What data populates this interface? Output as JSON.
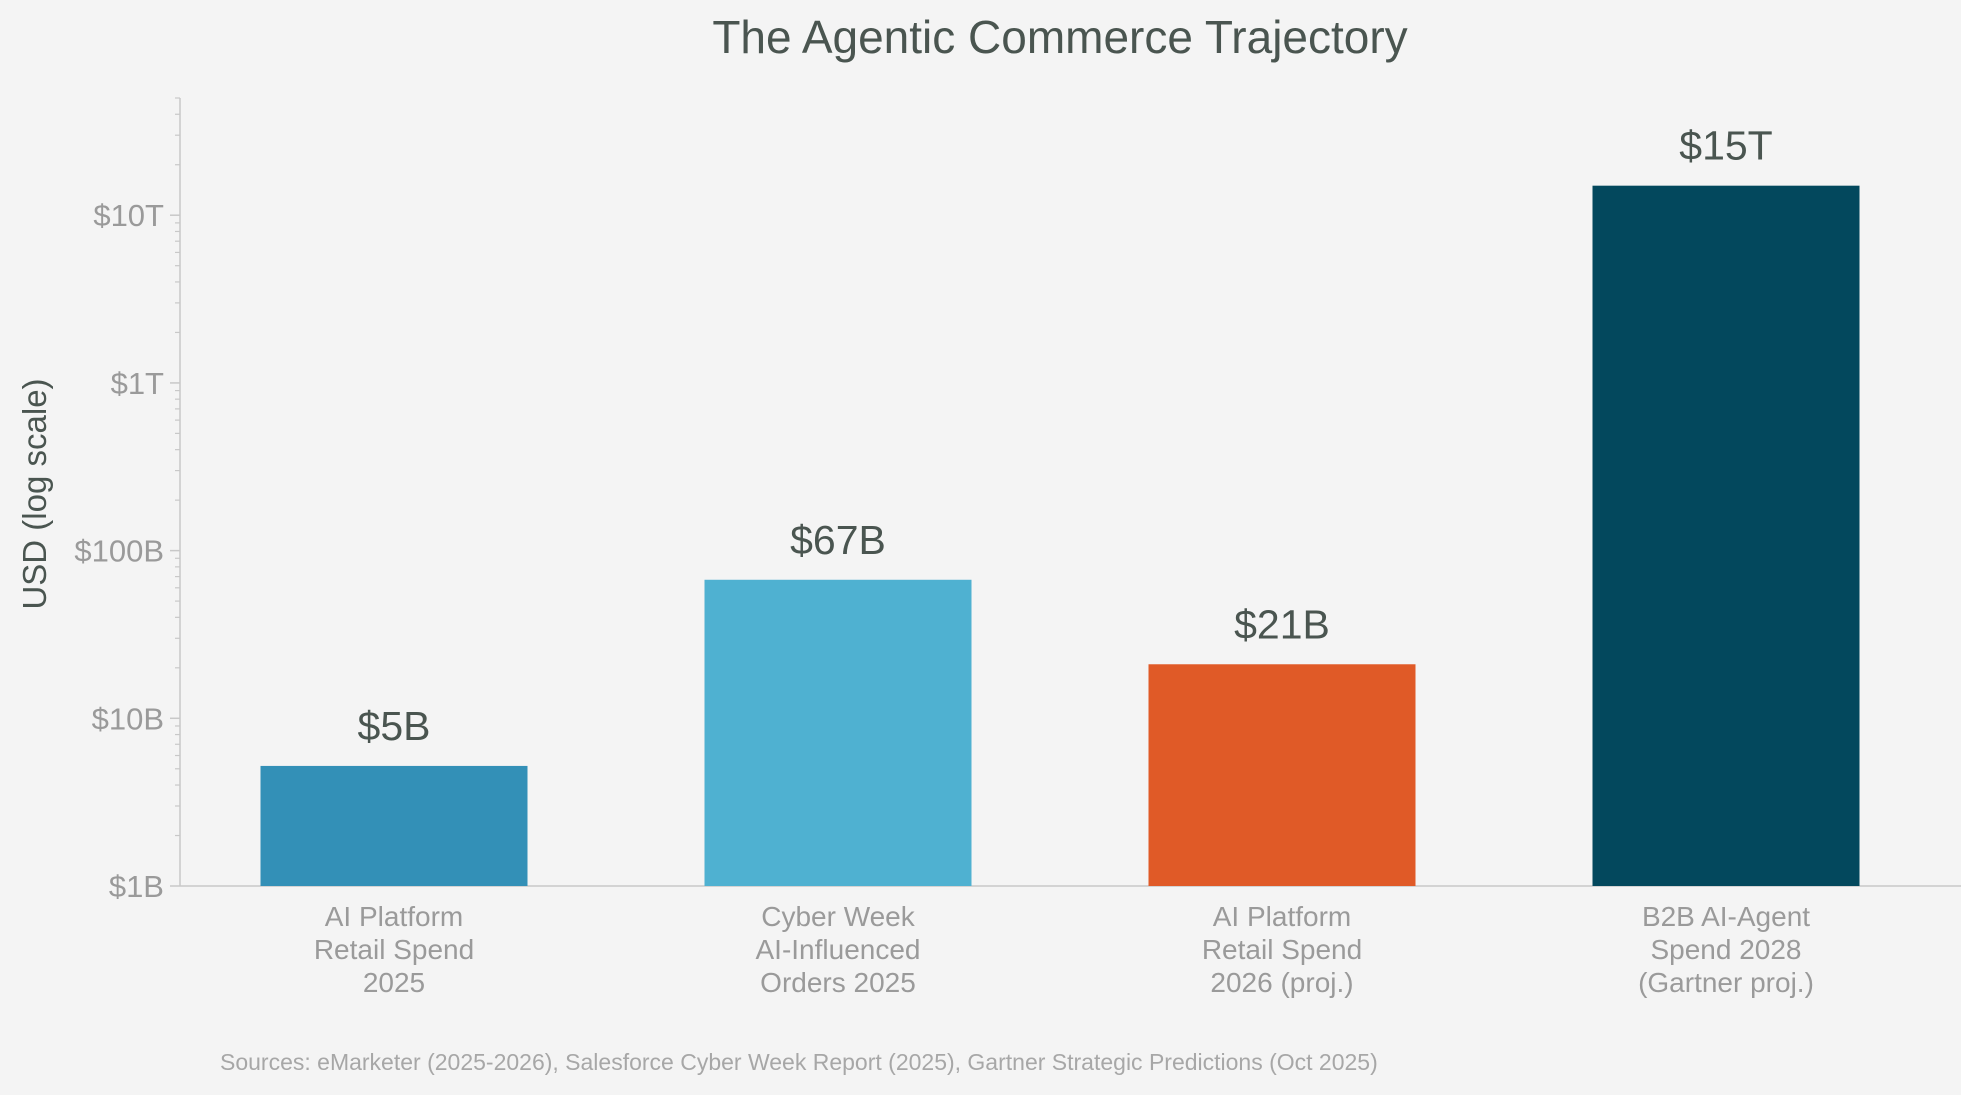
{
  "chart_data": {
    "type": "bar",
    "title": "The Agentic Commerce Trajectory",
    "ylabel": "USD (log scale)",
    "yscale": "log",
    "ylim": [
      1000000000,
      50000000000000
    ],
    "yticks": [
      {
        "value": 1000000000,
        "label": "$1B"
      },
      {
        "value": 10000000000,
        "label": "$10B"
      },
      {
        "value": 100000000000,
        "label": "$100B"
      },
      {
        "value": 1000000000000,
        "label": "$1T"
      },
      {
        "value": 10000000000000,
        "label": "$10T"
      }
    ],
    "grid": false,
    "bars": [
      {
        "category": [
          "AI Platform",
          "Retail Spend",
          "2025"
        ],
        "value": 5200000000,
        "label": "$5B",
        "color": "#3390b7"
      },
      {
        "category": [
          "Cyber Week",
          "AI-Influenced",
          "Orders 2025"
        ],
        "value": 67000000000,
        "label": "$67B",
        "color": "#4fb1d1"
      },
      {
        "category": [
          "AI Platform",
          "Retail Spend",
          "2026 (proj.)"
        ],
        "value": 21000000000,
        "label": "$21B",
        "color": "#e05a27"
      },
      {
        "category": [
          "B2B AI-Agent",
          "Spend 2028",
          "(Gartner proj.)"
        ],
        "value": 15000000000000,
        "label": "$15T",
        "color": "#03485d"
      }
    ],
    "source_note": "Sources: eMarketer (2025-2026), Salesforce Cyber Week Report (2025), Gartner Strategic Predictions (Oct 2025)"
  }
}
